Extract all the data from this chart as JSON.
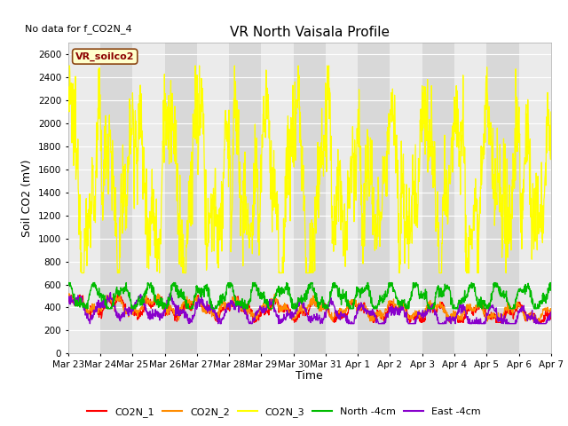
{
  "title": "VR North Vaisala Profile",
  "no_data_text": "No data for f_CO2N_4",
  "ylabel": "Soil CO2 (mV)",
  "xlabel": "Time",
  "legend_box_label": "VR_soilco2",
  "ylim": [
    0,
    2700
  ],
  "background_color": "#ffffff",
  "plot_bg_color": "#d8d8d8",
  "alt_band_color": "#ebebeb",
  "series": {
    "CO2N_1": {
      "color": "#ff0000",
      "label": "CO2N_1"
    },
    "CO2N_2": {
      "color": "#ff8c00",
      "label": "CO2N_2"
    },
    "CO2N_3": {
      "color": "#ffff00",
      "label": "CO2N_3"
    },
    "North_4cm": {
      "color": "#00bb00",
      "label": "North -4cm"
    },
    "East_4cm": {
      "color": "#8800cc",
      "label": "East -4cm"
    }
  },
  "x_tick_labels": [
    "Mar 23",
    "Mar 24",
    "Mar 25",
    "Mar 26",
    "Mar 27",
    "Mar 28",
    "Mar 29",
    "Mar 30",
    "Mar 31",
    "Apr 1",
    "Apr 2",
    "Apr 3",
    "Apr 4",
    "Apr 5",
    "Apr 6",
    "Apr 7"
  ],
  "yticks": [
    0,
    200,
    400,
    600,
    800,
    1000,
    1200,
    1400,
    1600,
    1800,
    2000,
    2200,
    2400,
    2600
  ]
}
